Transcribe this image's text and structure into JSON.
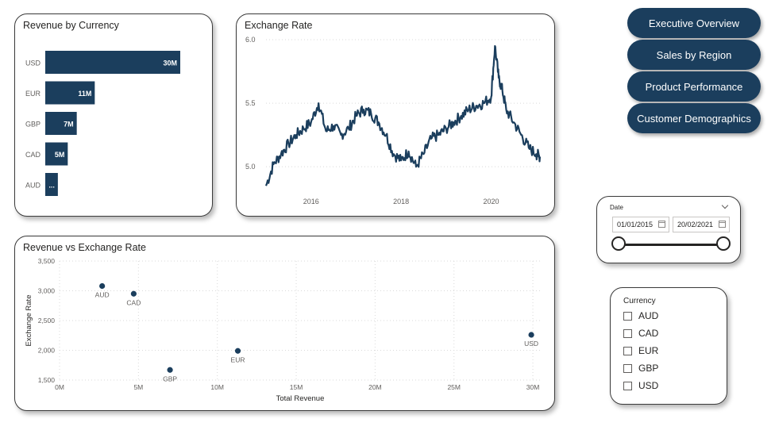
{
  "revenue_by_currency": {
    "title": "Revenue by Currency",
    "chart_data": {
      "type": "bar",
      "orientation": "horizontal",
      "categories": [
        "USD",
        "EUR",
        "GBP",
        "CAD",
        "AUD"
      ],
      "values": [
        30,
        11,
        7,
        5,
        2.8
      ],
      "data_labels": [
        "30M",
        "11M",
        "7M",
        "5M",
        "..."
      ],
      "xlim": [
        0,
        30
      ]
    }
  },
  "exchange_rate": {
    "title": "Exchange Rate",
    "chart_data": {
      "type": "line",
      "x": [
        "2015-01",
        "2015-03",
        "2015-05",
        "2015-07",
        "2015-09",
        "2015-11",
        "2016-01",
        "2016-03",
        "2016-05",
        "2016-07",
        "2016-09",
        "2016-11",
        "2017-01",
        "2017-03",
        "2017-05",
        "2017-07",
        "2017-09",
        "2017-11",
        "2018-01",
        "2018-03",
        "2018-05",
        "2018-07",
        "2018-09",
        "2018-11",
        "2019-01",
        "2019-03",
        "2019-05",
        "2019-07",
        "2019-09",
        "2019-11",
        "2020-01",
        "2020-02",
        "2020-03",
        "2020-04",
        "2020-05",
        "2020-07",
        "2020-09",
        "2020-11",
        "2021-01",
        "2021-02"
      ],
      "y": [
        4.85,
        5.02,
        5.1,
        5.18,
        5.25,
        5.3,
        5.35,
        5.5,
        5.28,
        5.32,
        5.25,
        5.3,
        5.4,
        5.45,
        5.42,
        5.35,
        5.25,
        5.1,
        5.05,
        5.12,
        5.0,
        5.1,
        5.22,
        5.25,
        5.3,
        5.35,
        5.4,
        5.45,
        5.48,
        5.5,
        5.55,
        5.95,
        5.7,
        5.6,
        5.45,
        5.35,
        5.25,
        5.15,
        5.1,
        5.08
      ],
      "xticks": [
        "2016",
        "2018",
        "2020"
      ],
      "yticks": [
        "5.0",
        "5.5",
        "6.0"
      ],
      "ylim": [
        4.82,
        6.0
      ]
    }
  },
  "revenue_vs_exchange": {
    "title": "Revenue vs Exchange Rate",
    "chart_data": {
      "type": "scatter",
      "xlabel": "Total Revenue",
      "ylabel": "Exchange Rate",
      "xticks": [
        "0M",
        "5M",
        "10M",
        "15M",
        "20M",
        "25M",
        "30M"
      ],
      "yticks": [
        "1,500",
        "2,000",
        "2,500",
        "3,000",
        "3,500"
      ],
      "xlim": [
        0,
        30.5
      ],
      "ylim": [
        1500,
        3500
      ],
      "points": [
        {
          "label": "AUD",
          "x": 2.7,
          "y": 3080
        },
        {
          "label": "CAD",
          "x": 4.7,
          "y": 2950
        },
        {
          "label": "GBP",
          "x": 7.0,
          "y": 1670
        },
        {
          "label": "EUR",
          "x": 11.3,
          "y": 1990
        },
        {
          "label": "USD",
          "x": 29.9,
          "y": 2260
        }
      ]
    }
  },
  "nav": {
    "buttons": [
      "Executive Overview",
      "Sales by Region",
      "Product Performance",
      "Customer Demographics"
    ]
  },
  "date_slicer": {
    "title": "Date",
    "start": "01/01/2015",
    "end": "20/02/2021"
  },
  "currency_slicer": {
    "title": "Currency",
    "options": [
      "AUD",
      "CAD",
      "EUR",
      "GBP",
      "USD"
    ]
  },
  "colors": {
    "primary": "#1b3e5d",
    "text": "#252423",
    "axis_text": "#605e5c",
    "grid": "#d9d9d9"
  }
}
